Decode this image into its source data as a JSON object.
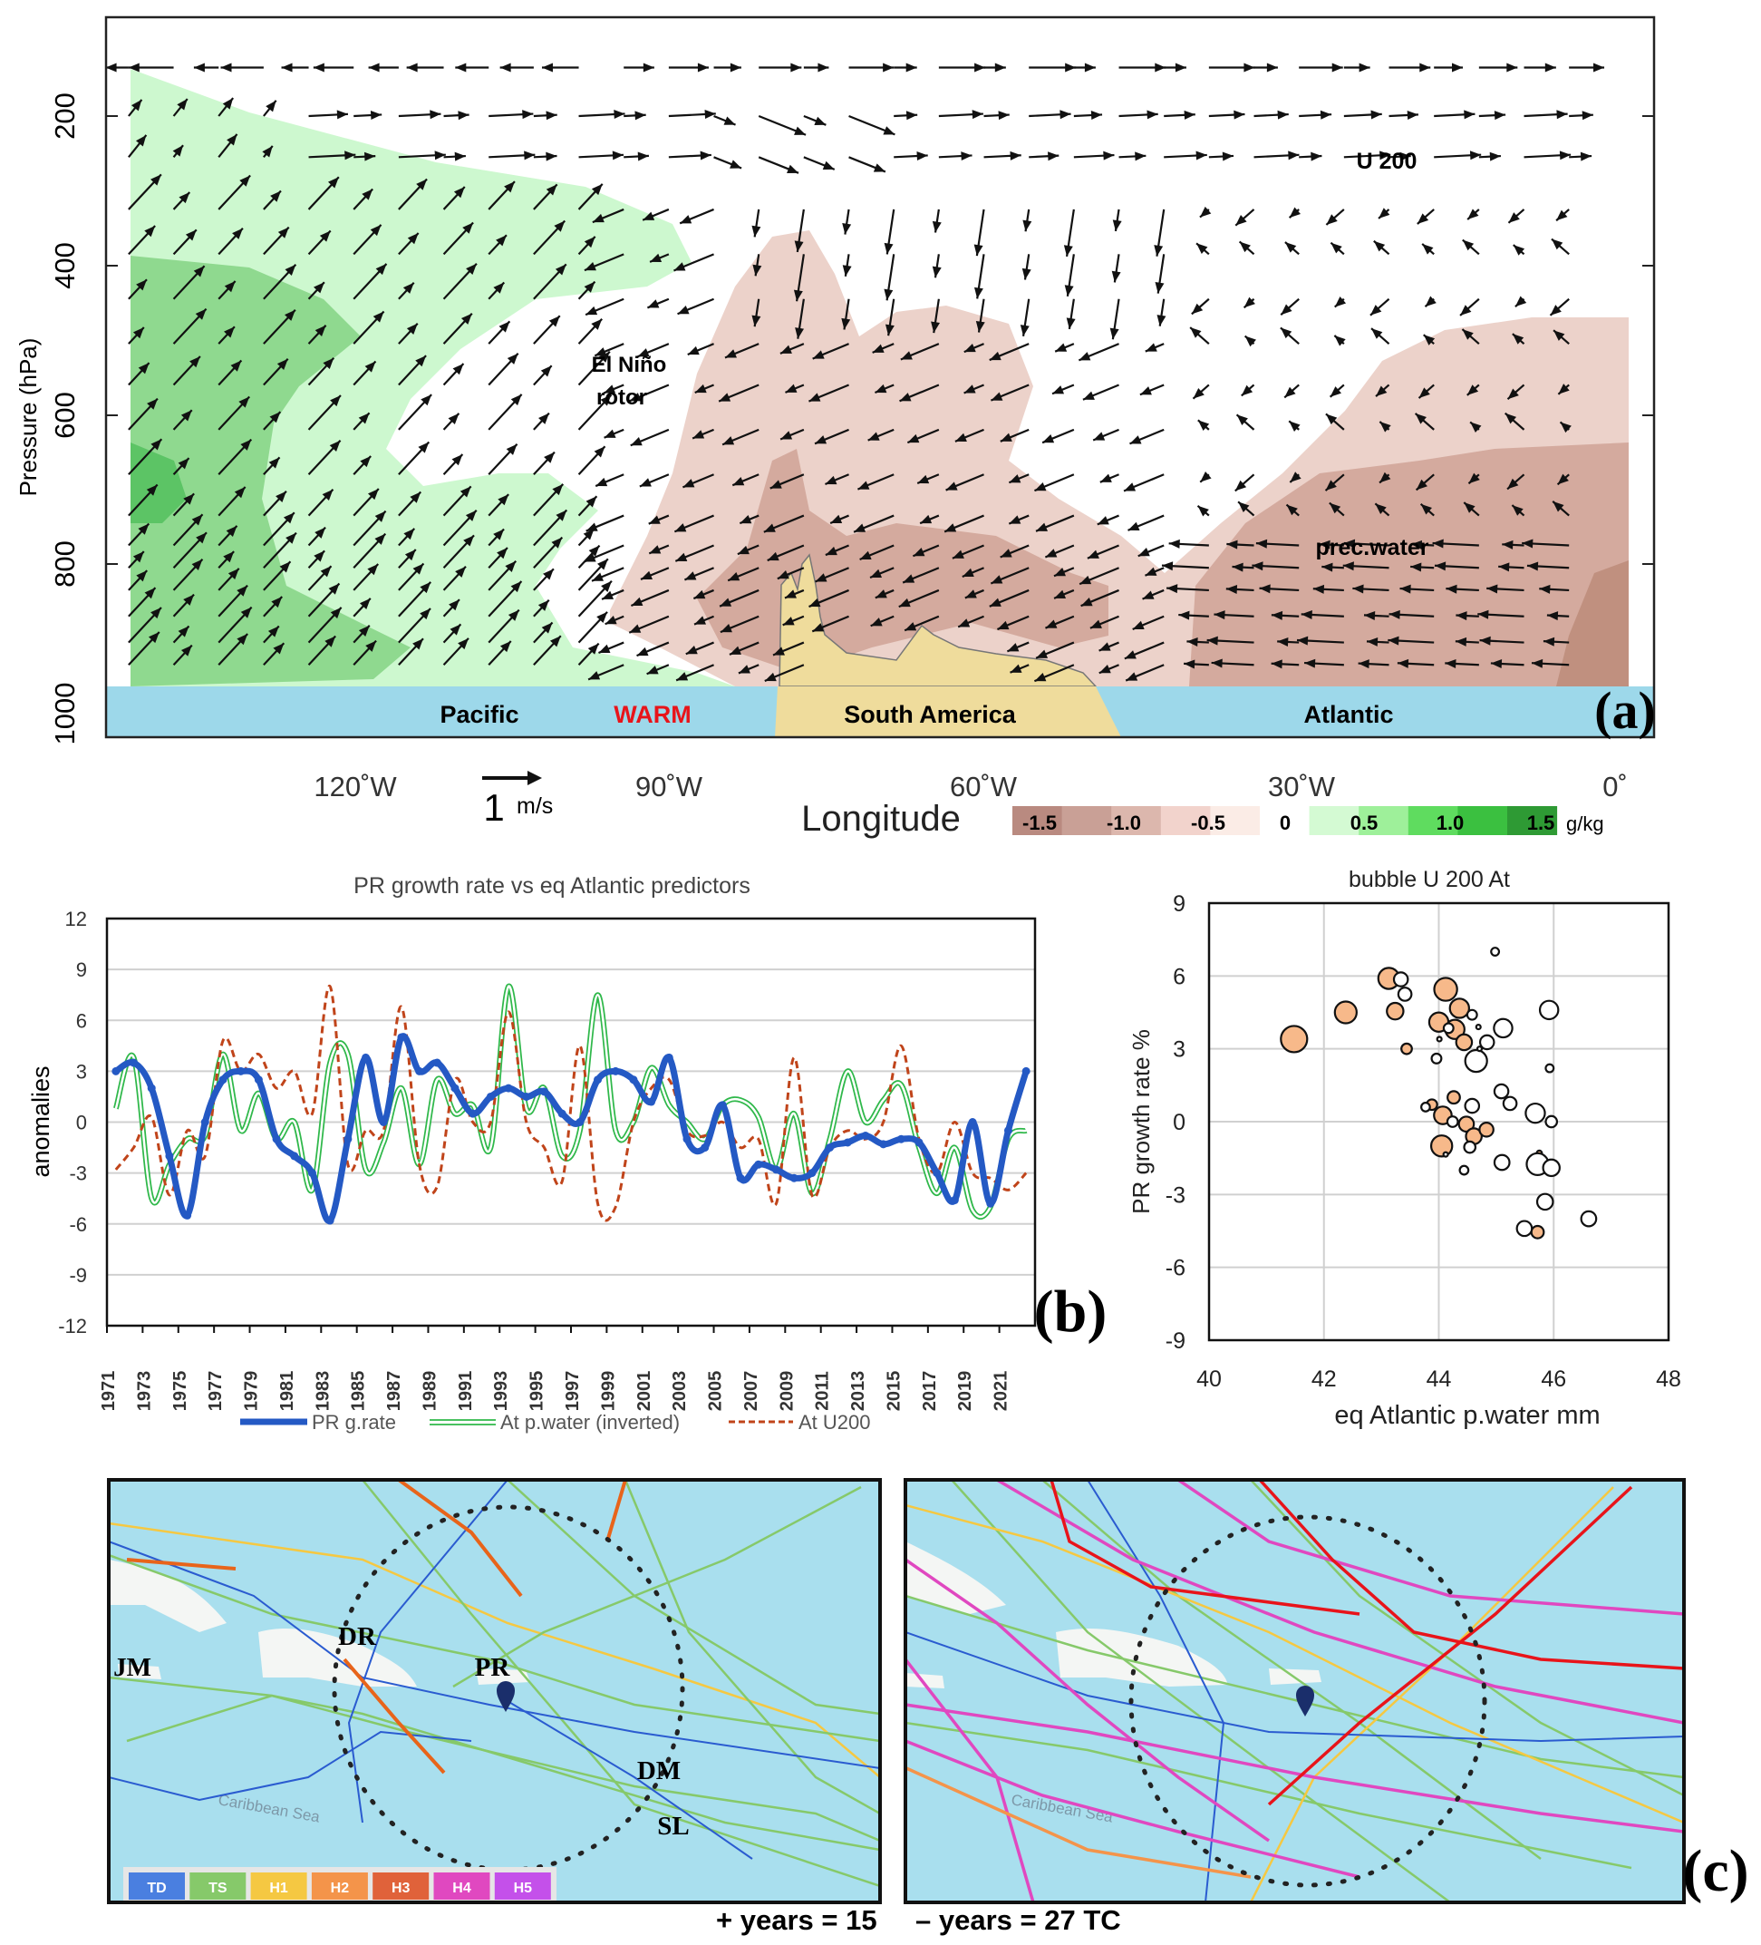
{
  "panel_a": {
    "label": "(a)",
    "ylabel": "Pressure (hPa)",
    "xlabel": "Longitude",
    "pressure_ticks": [
      "200",
      "400",
      "600",
      "800",
      "1000"
    ],
    "lon_ticks": [
      "120˚W",
      "90˚W",
      "60˚W",
      "30˚W",
      "0˚"
    ],
    "annotations": {
      "u200": "U 200",
      "rotor1": "El Niño",
      "rotor2": "rotor",
      "precwater": "prec.water"
    },
    "surface": {
      "pacific": "Pacific",
      "warm": "WARM",
      "south_america": "South America",
      "atlantic": "Atlantic"
    },
    "vector_scale": {
      "value": "1",
      "unit": "m/s"
    },
    "colorbar": {
      "labels": [
        "-1.5",
        "-1.0",
        "-0.5",
        "0",
        "0.5",
        "1.0",
        "1.5"
      ],
      "unit": "g/kg",
      "colors": [
        "#b98a80",
        "#c9a096",
        "#dcb7ad",
        "#f2d3cc",
        "#fbece6",
        "#ffffff",
        "#d4fad3",
        "#9ef09a",
        "#5fdc5f",
        "#3bc040",
        "#2e9a34"
      ]
    },
    "colors": {
      "green_light": "#cdf8cf",
      "green_mid": "#8fd98f",
      "green_dark": "#5cc465",
      "brown_light": "#ecd2ca",
      "brown_mid": "#d4aa9e",
      "brown_dark": "#c0907f",
      "ocean": "#9dd8ea",
      "land": "#efdc9c"
    }
  },
  "chart_data": [
    {
      "type": "line",
      "title": "PR growth rate vs eq Atlantic predictors",
      "ylabel": "anomalies",
      "xlabel": "",
      "ylim": [
        -12,
        12
      ],
      "yticks": [
        "12",
        "9",
        "6",
        "3",
        "0",
        "-3",
        "-6",
        "-9",
        "-12"
      ],
      "x": [
        1971,
        1972,
        1973,
        1974,
        1975,
        1976,
        1977,
        1978,
        1979,
        1980,
        1981,
        1982,
        1983,
        1984,
        1985,
        1986,
        1987,
        1988,
        1989,
        1990,
        1991,
        1992,
        1993,
        1994,
        1995,
        1996,
        1997,
        1998,
        1999,
        2000,
        2001,
        2002,
        2003,
        2004,
        2005,
        2006,
        2007,
        2008,
        2009,
        2010,
        2011,
        2012,
        2013,
        2014,
        2015,
        2016,
        2017,
        2018,
        2019,
        2020,
        2021,
        2022
      ],
      "xticks": [
        "1971",
        "1973",
        "1975",
        "1977",
        "1979",
        "1981",
        "1983",
        "1985",
        "1987",
        "1989",
        "1991",
        "1993",
        "1995",
        "1997",
        "1999",
        "2001",
        "2003",
        "2005",
        "2007",
        "2009",
        "2011",
        "2013",
        "2015",
        "2017",
        "2019",
        "2021"
      ],
      "xlim": [
        1971,
        2023
      ],
      "series": [
        {
          "name": "PR g.rate",
          "color": "#2459c4",
          "values": [
            3,
            3.5,
            2,
            -2,
            -5.5,
            0,
            2.5,
            3,
            2.5,
            -1,
            -2,
            -3,
            -5.8,
            -1,
            3.8,
            0,
            5,
            3,
            3.5,
            2,
            0.5,
            1.5,
            2,
            1.5,
            1.8,
            0.5,
            0,
            2.5,
            3,
            2.5,
            1.2,
            3.8,
            -1,
            -1.5,
            1,
            -3.3,
            -2.5,
            -2.8,
            -3.3,
            -3,
            -1.5,
            -1.2,
            -0.8,
            -1.3,
            -1,
            -1.2,
            -3,
            -4.6,
            0,
            -4.8,
            -0.5,
            3
          ]
        },
        {
          "name": "At p.water (inverted)",
          "color": "#2fb84a",
          "values": [
            0.8,
            3.8,
            -4.5,
            -2.5,
            -1,
            -0.8,
            4,
            -0.5,
            1.7,
            -1,
            0,
            -4,
            3.5,
            4,
            -2.8,
            -1.2,
            2,
            -2.5,
            2.5,
            0.5,
            1,
            -1.5,
            8,
            0.8,
            2,
            -2,
            -0.5,
            7.5,
            -0.5,
            0,
            3.2,
            1,
            0,
            -1,
            1,
            1.3,
            0.3,
            -2.8,
            0.5,
            -4.2,
            -1,
            3,
            0,
            1.3,
            2.2,
            -1.5,
            -4.2,
            -1.5,
            -5.2,
            -5,
            -1,
            -0.5
          ]
        },
        {
          "name": "At U200",
          "color": "#c0441a",
          "values": [
            -2.8,
            -1.5,
            0.3,
            -4.3,
            -0.5,
            -2,
            4.8,
            3,
            4,
            2,
            3,
            0.5,
            8,
            -2.5,
            -0.5,
            -0.5,
            6.8,
            -2.5,
            -3.8,
            2.5,
            0,
            0,
            6.5,
            0,
            -1.5,
            -3.5,
            4.5,
            -4.8,
            -5,
            0,
            2,
            2.5,
            -0.5,
            -0.8,
            0,
            -1.5,
            -1,
            -4.8,
            3.8,
            -4.3,
            -1.5,
            -0.5,
            -1,
            0,
            4.5,
            -1,
            -3,
            0,
            -3,
            -3.3,
            -4,
            -3
          ]
        }
      ],
      "legend": "bottom",
      "panel_label": "(b)"
    },
    {
      "type": "scatter",
      "title": "bubble U 200 At",
      "xlabel": "eq Atlantic p.water mm",
      "ylabel": "PR growth rate %",
      "xlim": [
        40,
        48
      ],
      "ylim": [
        -9,
        9
      ],
      "xticks": [
        "40",
        "42",
        "44",
        "46",
        "48"
      ],
      "yticks": [
        "9",
        "6",
        "3",
        "0",
        "-3",
        "-6",
        "-9"
      ],
      "fill_color": "#f7b98a",
      "points": [
        {
          "x": 41.48,
          "y": 3.4,
          "size": 10,
          "filled": true
        },
        {
          "x": 42.38,
          "y": 4.5,
          "size": 8.3,
          "filled": true
        },
        {
          "x": 43.13,
          "y": 5.9,
          "size": 8,
          "filled": true
        },
        {
          "x": 43.24,
          "y": 4.55,
          "size": 6.3,
          "filled": true
        },
        {
          "x": 43.44,
          "y": 3.0,
          "size": 4,
          "filled": true
        },
        {
          "x": 44.12,
          "y": 5.45,
          "size": 8.7,
          "filled": true
        },
        {
          "x": 44.36,
          "y": 4.67,
          "size": 7.3,
          "filled": true
        },
        {
          "x": 44.0,
          "y": 4.1,
          "size": 7.3,
          "filled": true
        },
        {
          "x": 44.28,
          "y": 3.8,
          "size": 7.3,
          "filled": true
        },
        {
          "x": 44.44,
          "y": 3.27,
          "size": 6,
          "filled": true
        },
        {
          "x": 44.26,
          "y": 1.0,
          "size": 4.7,
          "filled": true
        },
        {
          "x": 43.88,
          "y": 0.7,
          "size": 4,
          "filled": true
        },
        {
          "x": 44.07,
          "y": 0.26,
          "size": 6.7,
          "filled": true
        },
        {
          "x": 44.48,
          "y": -0.1,
          "size": 5.7,
          "filled": true
        },
        {
          "x": 44.61,
          "y": -0.6,
          "size": 6,
          "filled": true
        },
        {
          "x": 44.83,
          "y": -0.33,
          "size": 5.3,
          "filled": true
        },
        {
          "x": 44.05,
          "y": -1.0,
          "size": 8,
          "filled": true
        },
        {
          "x": 45.72,
          "y": -4.55,
          "size": 4.7,
          "filled": true
        },
        {
          "x": 45.75,
          "y": -1.3,
          "size": 2,
          "filled": true
        },
        {
          "x": 43.34,
          "y": 5.86,
          "size": 5.3,
          "filled": false
        },
        {
          "x": 43.41,
          "y": 5.25,
          "size": 5,
          "filled": false
        },
        {
          "x": 44.58,
          "y": 4.4,
          "size": 3.7,
          "filled": false
        },
        {
          "x": 44.17,
          "y": 3.85,
          "size": 3.7,
          "filled": false
        },
        {
          "x": 44.01,
          "y": 3.4,
          "size": 1.7,
          "filled": false
        },
        {
          "x": 44.69,
          "y": 3.9,
          "size": 1.7,
          "filled": false
        },
        {
          "x": 44.84,
          "y": 3.27,
          "size": 5.3,
          "filled": false
        },
        {
          "x": 45.12,
          "y": 3.85,
          "size": 7,
          "filled": false
        },
        {
          "x": 44.65,
          "y": 2.5,
          "size": 8.3,
          "filled": false
        },
        {
          "x": 44.71,
          "y": 3.0,
          "size": 1.7,
          "filled": false
        },
        {
          "x": 44.98,
          "y": 7.0,
          "size": 3,
          "filled": false
        },
        {
          "x": 43.96,
          "y": 2.6,
          "size": 3.7,
          "filled": false
        },
        {
          "x": 45.92,
          "y": 4.6,
          "size": 7,
          "filled": false
        },
        {
          "x": 45.93,
          "y": 2.2,
          "size": 3,
          "filled": false
        },
        {
          "x": 45.09,
          "y": 1.25,
          "size": 5.3,
          "filled": false
        },
        {
          "x": 45.24,
          "y": 0.75,
          "size": 5,
          "filled": false
        },
        {
          "x": 44.58,
          "y": 0.65,
          "size": 5.3,
          "filled": false
        },
        {
          "x": 45.68,
          "y": 0.35,
          "size": 7.3,
          "filled": false
        },
        {
          "x": 45.96,
          "y": 0.0,
          "size": 4.3,
          "filled": false
        },
        {
          "x": 43.77,
          "y": 0.6,
          "size": 3.3,
          "filled": false
        },
        {
          "x": 44.24,
          "y": 0.0,
          "size": 4,
          "filled": false
        },
        {
          "x": 44.54,
          "y": -1.05,
          "size": 4.3,
          "filled": false
        },
        {
          "x": 44.44,
          "y": -2.0,
          "size": 3.3,
          "filled": false
        },
        {
          "x": 45.1,
          "y": -1.68,
          "size": 5.7,
          "filled": false
        },
        {
          "x": 45.72,
          "y": -1.75,
          "size": 8.3,
          "filled": false
        },
        {
          "x": 45.96,
          "y": -1.9,
          "size": 6.3,
          "filled": false
        },
        {
          "x": 45.85,
          "y": -3.3,
          "size": 6,
          "filled": false
        },
        {
          "x": 45.49,
          "y": -4.4,
          "size": 5.7,
          "filled": false
        },
        {
          "x": 46.61,
          "y": -4.0,
          "size": 5.7,
          "filled": false
        },
        {
          "x": 44.12,
          "y": -1.35,
          "size": 1.7,
          "filled": false
        }
      ]
    }
  ],
  "panel_c": {
    "label": "(c)",
    "left_labels": {
      "jm": "JM",
      "dr": "DR",
      "pr": "PR",
      "dm": "DM",
      "sl": "SL"
    },
    "sea_label": "Caribbean Sea",
    "legend": [
      {
        "label": "TD",
        "color": "#4a7fe0"
      },
      {
        "label": "TS",
        "color": "#86c96a"
      },
      {
        "label": "H1",
        "color": "#f5c842"
      },
      {
        "label": "H2",
        "color": "#f4944a"
      },
      {
        "label": "H3",
        "color": "#e0623a"
      },
      {
        "label": "H4",
        "color": "#e048c0"
      },
      {
        "label": "H5",
        "color": "#c450ea"
      }
    ],
    "plus_years": "+ years = ",
    "plus_count": "15",
    "minus_years": "– years = ",
    "minus_count": "27 TC",
    "ocean_color": "#a9dfee"
  }
}
